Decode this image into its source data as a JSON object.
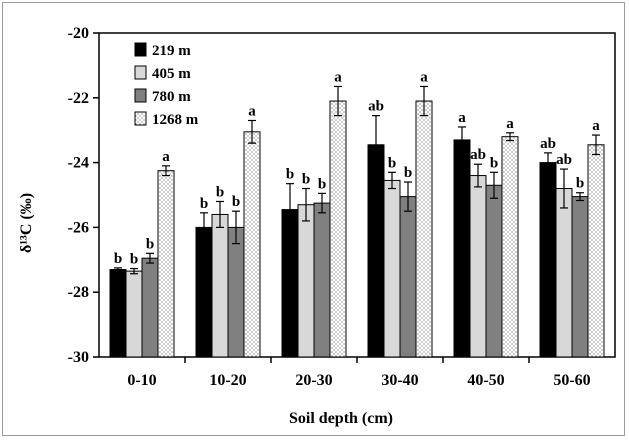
{
  "chart_data": {
    "type": "bar",
    "xlabel": "Soil depth (cm)",
    "ylabel": "δ¹³C (‰)",
    "ylim": [
      -30,
      -20
    ],
    "yticks": [
      -20,
      -22,
      -24,
      -26,
      -28,
      -30
    ],
    "grid": false,
    "legend_position": "top-left",
    "categories": [
      "0-10",
      "10-20",
      "20-30",
      "30-40",
      "40-50",
      "50-60"
    ],
    "series": [
      {
        "name": "219 m",
        "fill": "#000000",
        "pattern": "solid",
        "values": [
          -27.3,
          -26.0,
          -25.45,
          -23.45,
          -23.3,
          -24.0
        ],
        "errors": [
          0.05,
          0.45,
          0.8,
          0.9,
          0.4,
          0.3
        ],
        "labels": [
          "b",
          "b",
          "b",
          "ab",
          "a",
          "ab"
        ]
      },
      {
        "name": "405 m",
        "fill": "#d8d8d8",
        "pattern": "solid",
        "values": [
          -27.35,
          -25.6,
          -25.3,
          -24.55,
          -24.4,
          -24.8
        ],
        "errors": [
          0.08,
          0.4,
          0.5,
          0.25,
          0.35,
          0.6
        ],
        "labels": [
          "b",
          "b",
          "b",
          "b",
          "ab",
          "ab"
        ]
      },
      {
        "name": "780 m",
        "fill": "#808080",
        "pattern": "solid",
        "values": [
          -26.95,
          -26.0,
          -25.25,
          -25.05,
          -24.7,
          -25.05
        ],
        "errors": [
          0.15,
          0.5,
          0.3,
          0.45,
          0.4,
          0.12
        ],
        "labels": [
          "b",
          "b",
          "b",
          "b",
          "b",
          "b"
        ]
      },
      {
        "name": "1268 m",
        "fill": "#ffffff",
        "pattern": "dots",
        "values": [
          -24.25,
          -23.05,
          -22.1,
          -22.1,
          -23.2,
          -23.45
        ],
        "errors": [
          0.15,
          0.35,
          0.45,
          0.45,
          0.12,
          0.3
        ],
        "labels": [
          "a",
          "a",
          "a",
          "a",
          "a",
          "a"
        ]
      }
    ]
  }
}
